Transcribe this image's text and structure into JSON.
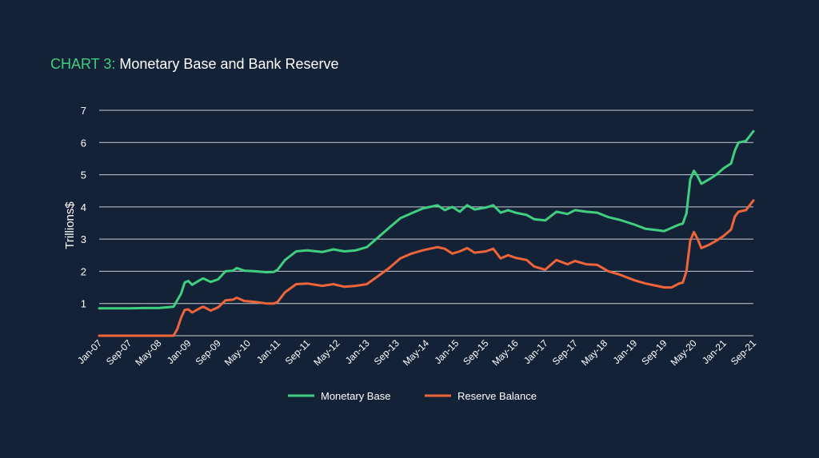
{
  "title": {
    "prefix": "CHART 3:",
    "text": "Monetary Base and Bank Reserve"
  },
  "colors": {
    "background": "#142238",
    "monetary_base": "#3fcf7e",
    "reserve_balance": "#f0643a",
    "grid": "#c8ccd4"
  },
  "chart_data": {
    "type": "line",
    "title": "CHART 3: Monetary Base and Bank Reserve",
    "xlabel": "",
    "ylabel": "Trillions$",
    "ylim": [
      0,
      7
    ],
    "yticks": [
      1,
      2,
      3,
      4,
      5,
      6,
      7
    ],
    "grid": true,
    "legend": "bottom-center",
    "x_tick_labels": [
      "Jan-07",
      "Sep-07",
      "May-08",
      "Jan-09",
      "Sep-09",
      "May-10",
      "Jan-11",
      "Sep-11",
      "May-12",
      "Jan-13",
      "Sep-13",
      "May-14",
      "Jan-15",
      "Sep-15",
      "May-16",
      "Jan-17",
      "Sep-17",
      "May-18",
      "Jan-19",
      "Sep-19",
      "May-20",
      "Jan-21",
      "Sep-21"
    ],
    "x_start": "Jan-07",
    "x_end": "Sep-21",
    "series": [
      {
        "name": "Monetary Base",
        "points": [
          [
            "Jan-07",
            0.85
          ],
          [
            "May-07",
            0.85
          ],
          [
            "Sep-07",
            0.85
          ],
          [
            "Jan-08",
            0.86
          ],
          [
            "May-08",
            0.86
          ],
          [
            "Sep-08",
            0.9
          ],
          [
            "Nov-08",
            1.3
          ],
          [
            "Dec-08",
            1.65
          ],
          [
            "Jan-09",
            1.7
          ],
          [
            "Feb-09",
            1.58
          ],
          [
            "Apr-09",
            1.72
          ],
          [
            "May-09",
            1.78
          ],
          [
            "Jul-09",
            1.67
          ],
          [
            "Sep-09",
            1.75
          ],
          [
            "Nov-09",
            2.0
          ],
          [
            "Jan-10",
            2.02
          ],
          [
            "Feb-10",
            2.1
          ],
          [
            "Apr-10",
            2.02
          ],
          [
            "Jul-10",
            2.0
          ],
          [
            "Oct-10",
            1.97
          ],
          [
            "Dec-10",
            1.98
          ],
          [
            "Jan-11",
            2.05
          ],
          [
            "Mar-11",
            2.35
          ],
          [
            "Jun-11",
            2.62
          ],
          [
            "Sep-11",
            2.65
          ],
          [
            "Jan-12",
            2.6
          ],
          [
            "Apr-12",
            2.68
          ],
          [
            "Jul-12",
            2.62
          ],
          [
            "Oct-12",
            2.65
          ],
          [
            "Jan-13",
            2.75
          ],
          [
            "Apr-13",
            3.05
          ],
          [
            "Jul-13",
            3.35
          ],
          [
            "Oct-13",
            3.65
          ],
          [
            "Jan-14",
            3.8
          ],
          [
            "Apr-14",
            3.95
          ],
          [
            "Aug-14",
            4.05
          ],
          [
            "Oct-14",
            3.9
          ],
          [
            "Dec-14",
            4.0
          ],
          [
            "Feb-15",
            3.85
          ],
          [
            "Apr-15",
            4.05
          ],
          [
            "Jun-15",
            3.92
          ],
          [
            "Sep-15",
            3.98
          ],
          [
            "Nov-15",
            4.05
          ],
          [
            "Jan-16",
            3.82
          ],
          [
            "Mar-16",
            3.9
          ],
          [
            "May-16",
            3.82
          ],
          [
            "Aug-16",
            3.75
          ],
          [
            "Oct-16",
            3.62
          ],
          [
            "Jan-17",
            3.58
          ],
          [
            "Apr-17",
            3.85
          ],
          [
            "Jul-17",
            3.78
          ],
          [
            "Sep-17",
            3.9
          ],
          [
            "Dec-17",
            3.85
          ],
          [
            "Mar-18",
            3.82
          ],
          [
            "Jun-18",
            3.68
          ],
          [
            "Sep-18",
            3.6
          ],
          [
            "Jan-19",
            3.45
          ],
          [
            "Apr-19",
            3.32
          ],
          [
            "Jul-19",
            3.28
          ],
          [
            "Sep-19",
            3.25
          ],
          [
            "Nov-19",
            3.35
          ],
          [
            "Jan-20",
            3.45
          ],
          [
            "Feb-20",
            3.48
          ],
          [
            "Mar-20",
            3.8
          ],
          [
            "Apr-20",
            4.85
          ],
          [
            "May-20",
            5.12
          ],
          [
            "Jun-20",
            4.95
          ],
          [
            "Jul-20",
            4.72
          ],
          [
            "Sep-20",
            4.85
          ],
          [
            "Nov-20",
            5.0
          ],
          [
            "Jan-21",
            5.2
          ],
          [
            "Mar-21",
            5.35
          ],
          [
            "Apr-21",
            5.75
          ],
          [
            "May-21",
            6.0
          ],
          [
            "Jul-21",
            6.05
          ],
          [
            "Aug-21",
            6.2
          ],
          [
            "Sep-21",
            6.35
          ]
        ]
      },
      {
        "name": "Reserve Balance",
        "points": [
          [
            "Jan-07",
            0.0
          ],
          [
            "May-07",
            0.0
          ],
          [
            "Sep-07",
            0.0
          ],
          [
            "Jan-08",
            0.0
          ],
          [
            "May-08",
            0.0
          ],
          [
            "Sep-08",
            0.0
          ],
          [
            "Oct-08",
            0.2
          ],
          [
            "Nov-08",
            0.55
          ],
          [
            "Dec-08",
            0.8
          ],
          [
            "Jan-09",
            0.82
          ],
          [
            "Feb-09",
            0.72
          ],
          [
            "Apr-09",
            0.85
          ],
          [
            "May-09",
            0.9
          ],
          [
            "Jul-09",
            0.78
          ],
          [
            "Sep-09",
            0.88
          ],
          [
            "Nov-09",
            1.1
          ],
          [
            "Jan-10",
            1.12
          ],
          [
            "Feb-10",
            1.18
          ],
          [
            "Apr-10",
            1.08
          ],
          [
            "Jul-10",
            1.05
          ],
          [
            "Oct-10",
            1.0
          ],
          [
            "Dec-10",
            1.0
          ],
          [
            "Jan-11",
            1.05
          ],
          [
            "Mar-11",
            1.35
          ],
          [
            "Jun-11",
            1.6
          ],
          [
            "Sep-11",
            1.62
          ],
          [
            "Jan-12",
            1.55
          ],
          [
            "Apr-12",
            1.6
          ],
          [
            "Jul-12",
            1.52
          ],
          [
            "Oct-12",
            1.55
          ],
          [
            "Jan-13",
            1.6
          ],
          [
            "Apr-13",
            1.85
          ],
          [
            "Jul-13",
            2.1
          ],
          [
            "Oct-13",
            2.4
          ],
          [
            "Jan-14",
            2.55
          ],
          [
            "Apr-14",
            2.65
          ],
          [
            "Aug-14",
            2.75
          ],
          [
            "Oct-14",
            2.7
          ],
          [
            "Dec-14",
            2.55
          ],
          [
            "Feb-15",
            2.62
          ],
          [
            "Apr-15",
            2.72
          ],
          [
            "Jun-15",
            2.58
          ],
          [
            "Sep-15",
            2.62
          ],
          [
            "Nov-15",
            2.7
          ],
          [
            "Jan-16",
            2.4
          ],
          [
            "Mar-16",
            2.5
          ],
          [
            "May-16",
            2.42
          ],
          [
            "Aug-16",
            2.35
          ],
          [
            "Oct-16",
            2.15
          ],
          [
            "Jan-17",
            2.05
          ],
          [
            "Apr-17",
            2.35
          ],
          [
            "Jul-17",
            2.22
          ],
          [
            "Sep-17",
            2.32
          ],
          [
            "Dec-17",
            2.22
          ],
          [
            "Mar-18",
            2.2
          ],
          [
            "Jun-18",
            2.0
          ],
          [
            "Sep-18",
            1.9
          ],
          [
            "Jan-19",
            1.72
          ],
          [
            "Apr-19",
            1.62
          ],
          [
            "Jul-19",
            1.55
          ],
          [
            "Sep-19",
            1.5
          ],
          [
            "Nov-19",
            1.5
          ],
          [
            "Jan-20",
            1.62
          ],
          [
            "Feb-20",
            1.65
          ],
          [
            "Mar-20",
            2.0
          ],
          [
            "Apr-20",
            2.95
          ],
          [
            "May-20",
            3.22
          ],
          [
            "Jun-20",
            3.0
          ],
          [
            "Jul-20",
            2.72
          ],
          [
            "Sep-20",
            2.82
          ],
          [
            "Nov-20",
            2.95
          ],
          [
            "Jan-21",
            3.1
          ],
          [
            "Mar-21",
            3.3
          ],
          [
            "Apr-21",
            3.7
          ],
          [
            "May-21",
            3.85
          ],
          [
            "Jul-21",
            3.9
          ],
          [
            "Aug-21",
            4.05
          ],
          [
            "Sep-21",
            4.2
          ]
        ]
      }
    ]
  }
}
